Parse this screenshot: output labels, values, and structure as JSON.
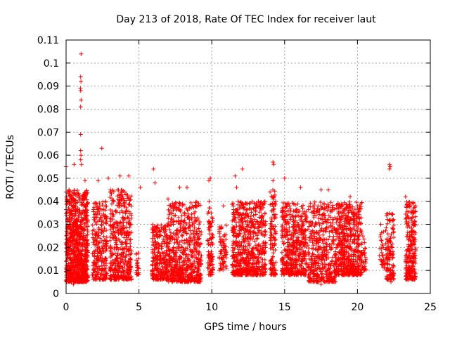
{
  "chart_data": {
    "type": "scatter",
    "title": "Day 213 of 2018, Rate Of TEC Index for receiver laut",
    "xlabel": "GPS time / hours",
    "ylabel": "ROTI / TECUs",
    "xlim": [
      0,
      25
    ],
    "ylim": [
      0,
      0.11
    ],
    "xticks": [
      0,
      5,
      10,
      15,
      20,
      25
    ],
    "xtick_labels": [
      "0",
      "5",
      "10",
      "15",
      "20",
      "25"
    ],
    "yticks": [
      0,
      0.01,
      0.02,
      0.03,
      0.04,
      0.05,
      0.06,
      0.07,
      0.08,
      0.09,
      0.1,
      0.11
    ],
    "ytick_labels": [
      "0",
      "0.01",
      "0.02",
      "0.03",
      "0.04",
      "0.05",
      "0.06",
      "0.07",
      "0.08",
      "0.09",
      "0.1",
      "0.11"
    ],
    "grid": true,
    "marker": "+",
    "color": "#ff0000",
    "clusters": [
      {
        "x_range": [
          0.0,
          1.5
        ],
        "y_range": [
          0.005,
          0.045
        ],
        "count": 900
      },
      {
        "x_range": [
          1.8,
          2.8
        ],
        "y_range": [
          0.006,
          0.04
        ],
        "count": 260
      },
      {
        "x_range": [
          3.0,
          4.5
        ],
        "y_range": [
          0.006,
          0.045
        ],
        "count": 430
      },
      {
        "x_range": [
          4.8,
          5.0
        ],
        "y_range": [
          0.008,
          0.018
        ],
        "count": 20
      },
      {
        "x_range": [
          5.9,
          7.0
        ],
        "y_range": [
          0.006,
          0.03
        ],
        "count": 280
      },
      {
        "x_range": [
          7.0,
          9.3
        ],
        "y_range": [
          0.005,
          0.04
        ],
        "count": 600
      },
      {
        "x_range": [
          9.7,
          10.1
        ],
        "y_range": [
          0.008,
          0.04
        ],
        "count": 90
      },
      {
        "x_range": [
          10.5,
          11.0
        ],
        "y_range": [
          0.01,
          0.03
        ],
        "count": 70
      },
      {
        "x_range": [
          11.4,
          13.7
        ],
        "y_range": [
          0.008,
          0.04
        ],
        "count": 620
      },
      {
        "x_range": [
          14.0,
          14.4
        ],
        "y_range": [
          0.008,
          0.045
        ],
        "count": 110
      },
      {
        "x_range": [
          14.8,
          16.5
        ],
        "y_range": [
          0.008,
          0.04
        ],
        "count": 460
      },
      {
        "x_range": [
          16.6,
          18.5
        ],
        "y_range": [
          0.005,
          0.04
        ],
        "count": 420
      },
      {
        "x_range": [
          18.5,
          20.3
        ],
        "y_range": [
          0.008,
          0.04
        ],
        "count": 560
      },
      {
        "x_range": [
          20.3,
          20.6
        ],
        "y_range": [
          0.01,
          0.025
        ],
        "count": 30
      },
      {
        "x_range": [
          21.5,
          22.0
        ],
        "y_range": [
          0.01,
          0.03
        ],
        "count": 40
      },
      {
        "x_range": [
          22.0,
          22.5
        ],
        "y_range": [
          0.006,
          0.035
        ],
        "count": 120
      },
      {
        "x_range": [
          23.3,
          24.0
        ],
        "y_range": [
          0.006,
          0.04
        ],
        "count": 240
      }
    ],
    "points": [
      {
        "x": 1.03,
        "y": 0.104
      },
      {
        "x": 1.0,
        "y": 0.094
      },
      {
        "x": 1.02,
        "y": 0.092
      },
      {
        "x": 0.98,
        "y": 0.089
      },
      {
        "x": 1.0,
        "y": 0.088
      },
      {
        "x": 1.03,
        "y": 0.084
      },
      {
        "x": 1.0,
        "y": 0.081
      },
      {
        "x": 1.0,
        "y": 0.069
      },
      {
        "x": 2.45,
        "y": 0.063
      },
      {
        "x": 1.0,
        "y": 0.062
      },
      {
        "x": 1.02,
        "y": 0.06
      },
      {
        "x": 1.0,
        "y": 0.058
      },
      {
        "x": 0.0,
        "y": 0.055
      },
      {
        "x": 1.05,
        "y": 0.056
      },
      {
        "x": 0.55,
        "y": 0.056
      },
      {
        "x": 6.0,
        "y": 0.054
      },
      {
        "x": 12.1,
        "y": 0.054
      },
      {
        "x": 14.2,
        "y": 0.057
      },
      {
        "x": 14.25,
        "y": 0.056
      },
      {
        "x": 22.2,
        "y": 0.056
      },
      {
        "x": 22.25,
        "y": 0.055
      },
      {
        "x": 22.2,
        "y": 0.054
      },
      {
        "x": 11.6,
        "y": 0.051
      },
      {
        "x": 9.9,
        "y": 0.05
      },
      {
        "x": 9.8,
        "y": 0.049
      },
      {
        "x": 14.2,
        "y": 0.049
      },
      {
        "x": 15.0,
        "y": 0.05
      },
      {
        "x": 4.3,
        "y": 0.051
      },
      {
        "x": 3.7,
        "y": 0.051
      },
      {
        "x": 2.2,
        "y": 0.049
      },
      {
        "x": 1.3,
        "y": 0.049
      },
      {
        "x": 6.1,
        "y": 0.048
      },
      {
        "x": 7.8,
        "y": 0.046
      },
      {
        "x": 8.3,
        "y": 0.046
      },
      {
        "x": 11.7,
        "y": 0.046
      },
      {
        "x": 16.1,
        "y": 0.046
      },
      {
        "x": 17.5,
        "y": 0.045
      },
      {
        "x": 18.0,
        "y": 0.045
      },
      {
        "x": 23.3,
        "y": 0.042
      },
      {
        "x": 0.2,
        "y": 0.045
      },
      {
        "x": 0.0,
        "y": 0.044
      },
      {
        "x": 2.9,
        "y": 0.05
      },
      {
        "x": 5.1,
        "y": 0.046
      },
      {
        "x": 7.0,
        "y": 0.041
      },
      {
        "x": 13.2,
        "y": 0.04
      },
      {
        "x": 19.5,
        "y": 0.042
      },
      {
        "x": 20.0,
        "y": 0.038
      },
      {
        "x": 21.6,
        "y": 0.03
      },
      {
        "x": 10.8,
        "y": 0.038
      },
      {
        "x": 4.9,
        "y": 0.012
      },
      {
        "x": 17.5,
        "y": 0.004
      },
      {
        "x": 0.5,
        "y": 0.004
      },
      {
        "x": 8.2,
        "y": 0.005
      },
      {
        "x": 22.3,
        "y": 0.005
      }
    ]
  }
}
